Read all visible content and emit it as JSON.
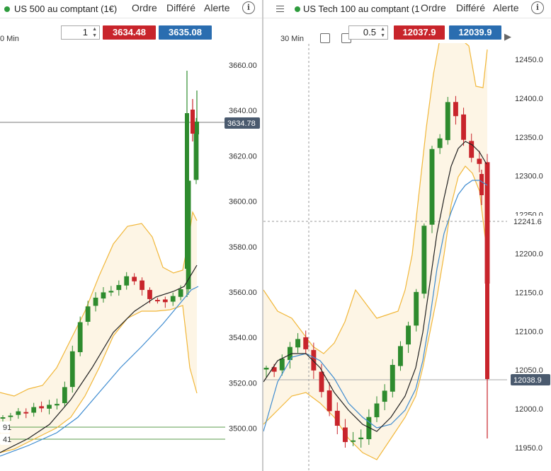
{
  "left": {
    "title": "US 500 au comptant (1€)",
    "menu": [
      "Ordre",
      "Différé",
      "Alerte"
    ],
    "info_icon": "info-icon",
    "quantity": "1",
    "sell_price": "3634.48",
    "buy_price": "3635.08",
    "timeframe": "0 Min",
    "current_price_label": "3634.78",
    "y_ticks": [
      "3660.00",
      "3640.00",
      "3620.00",
      "3600.00",
      "3580.00",
      "3560.00",
      "3540.00",
      "3520.00",
      "3500.00"
    ],
    "hline_labels": [
      "91",
      "41"
    ],
    "colors": {
      "up": "#2e8b2e",
      "down": "#c8242b",
      "band": "#f1b73a",
      "ma_fast": "#222222",
      "ma_slow": "#3d8bd0",
      "price_tag": "#4a5a6e"
    }
  },
  "right": {
    "title": "US Tech 100 au comptant (1",
    "menu": [
      "Ordre",
      "Différé",
      "Alerte"
    ],
    "quantity": "0.5",
    "sell_price": "12037.9",
    "buy_price": "12039.9",
    "timeframe": "30 Min",
    "toolbar_icons": [
      "calculator-icon",
      "clipboard-icon",
      "bar-chart-icon",
      "pencil-icon",
      "settings-icon",
      "zoom-out-icon",
      "zoom-in-icon",
      "next-icon"
    ],
    "crosshair_label": "12241.6",
    "current_price_label": "12038.9",
    "y_ticks": [
      "12450.0",
      "12400.0",
      "12350.0",
      "12300.0",
      "12250.0",
      "12200.0",
      "12150.0",
      "12100.0",
      "12050.0",
      "12000.0",
      "11950.0"
    ],
    "colors": {
      "up": "#2e8b2e",
      "down": "#c8242b",
      "band": "#f1b73a",
      "ma_fast": "#222222",
      "ma_slow": "#3d8bd0",
      "price_tag": "#4a5a6e"
    }
  }
}
